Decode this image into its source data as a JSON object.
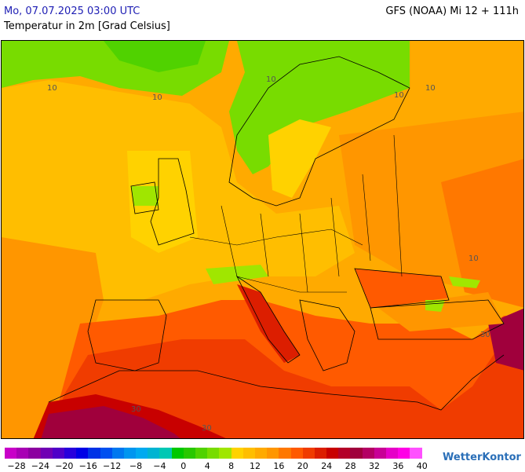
{
  "header": {
    "datetime": "Mo, 07.07.2025 03:00 UTC",
    "model": "GFS (NOAA) Mi 12 + 111h",
    "parameter": "Temperatur in 2m [Grad Celsius]"
  },
  "map": {
    "isotherm_labels": [
      "10",
      "10",
      "10",
      "10",
      "10",
      "30",
      "30",
      "30",
      "10"
    ]
  },
  "legend": {
    "ticks": [
      "−28",
      "−24",
      "−20",
      "−16",
      "−12",
      "−8",
      "−4",
      "0",
      "4",
      "8",
      "12",
      "16",
      "20",
      "24",
      "28",
      "32",
      "36",
      "40"
    ],
    "colors": [
      "#c800c8",
      "#a800b4",
      "#8c00a0",
      "#7000b4",
      "#5000c8",
      "#2800dc",
      "#0000e6",
      "#0032e6",
      "#0050f0",
      "#0078f0",
      "#0096f0",
      "#00aaf0",
      "#00b4d2",
      "#00c8b4",
      "#00c800",
      "#28c800",
      "#50d200",
      "#78dc00",
      "#a0e600",
      "#ffd200",
      "#ffbe00",
      "#ffaa00",
      "#ff9600",
      "#ff7800",
      "#ff5a00",
      "#f03c00",
      "#dc1e00",
      "#c80000",
      "#b40028",
      "#a0003c",
      "#b40064",
      "#c80096",
      "#e600c8",
      "#ff00e6",
      "#ff50ff"
    ],
    "tick_values": [
      -28,
      -24,
      -20,
      -16,
      -12,
      -8,
      -4,
      0,
      4,
      8,
      12,
      16,
      20,
      24,
      28,
      32,
      36,
      40
    ]
  },
  "brand": {
    "name": "WetterKontor"
  }
}
